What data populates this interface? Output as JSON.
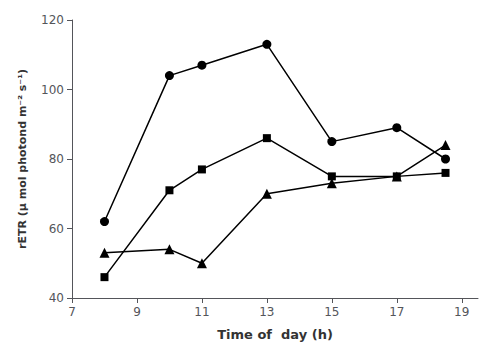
{
  "chart_data": {
    "type": "line",
    "xlabel": "Time of  day (h)",
    "ylabel": "rETR (μ mol photond m⁻² s⁻¹)",
    "x": [
      8.0,
      10.0,
      11.0,
      13.0,
      15.0,
      17.0,
      18.5
    ],
    "series": [
      {
        "color": "#000000",
        "marker": "circle",
        "line_style": "solid",
        "values": [
          62,
          104,
          107,
          113,
          85,
          89,
          80
        ]
      },
      {
        "color": "#000000",
        "marker": "square",
        "line_style": "solid",
        "values": [
          46,
          71,
          77,
          86,
          75,
          75,
          76
        ]
      },
      {
        "color": "#000000",
        "marker": "triangle",
        "line_style": "solid",
        "values": [
          53,
          54,
          50,
          70,
          73,
          75,
          84
        ]
      }
    ],
    "xlim": [
      7,
      19.5
    ],
    "ylim": [
      40,
      120
    ],
    "xticks": [
      7,
      9,
      11,
      13,
      15,
      17,
      19
    ],
    "yticks": [
      40,
      60,
      80,
      100,
      120
    ],
    "grid": false
  }
}
